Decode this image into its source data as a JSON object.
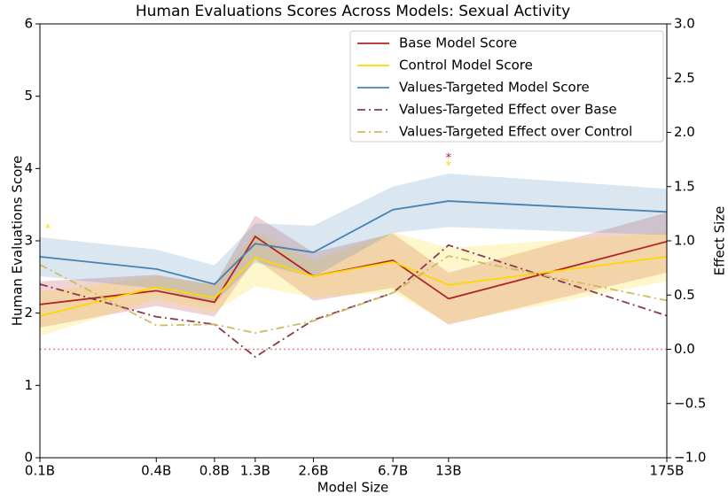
{
  "chart_data": {
    "type": "line",
    "title": "Human Evaluations Scores Across Models: Sexual Activity",
    "x_label": "Model Size",
    "y_label": "Human Evaluations Score",
    "y2_label": "Effect Size",
    "x_scale": "log",
    "x": [
      0.1,
      0.4,
      0.8,
      1.3,
      2.6,
      6.7,
      13,
      175
    ],
    "xlim": [
      0.1,
      175
    ],
    "xticks": [
      {
        "value": 0.1,
        "label": "0.1B"
      },
      {
        "value": 0.4,
        "label": "0.4B"
      },
      {
        "value": 0.8,
        "label": "0.8B"
      },
      {
        "value": 1.3,
        "label": "1.3B"
      },
      {
        "value": 2.6,
        "label": "2.6B"
      },
      {
        "value": 6.7,
        "label": "6.7B"
      },
      {
        "value": 13,
        "label": "13B"
      },
      {
        "value": 175,
        "label": "175B"
      }
    ],
    "ylim": [
      0,
      6
    ],
    "yticks": [
      0,
      1,
      2,
      3,
      4,
      5,
      6
    ],
    "y2lim": [
      -1,
      3
    ],
    "y2ticks": [
      {
        "value": -1,
        "label": "−1.0"
      },
      {
        "value": -0.5,
        "label": "−0.5"
      },
      {
        "value": 0,
        "label": "0.0"
      },
      {
        "value": 0.5,
        "label": "0.5"
      },
      {
        "value": 1,
        "label": "1.0"
      },
      {
        "value": 1.5,
        "label": "1.5"
      },
      {
        "value": 2,
        "label": "2.0"
      },
      {
        "value": 2.5,
        "label": "2.5"
      },
      {
        "value": 3,
        "label": "3.0"
      }
    ],
    "legend": "upper right",
    "reference_y2": 0,
    "series": [
      {
        "name": "Base Model Score",
        "color": "#b22222",
        "style": "solid",
        "values": [
          2.12,
          2.31,
          2.15,
          3.06,
          2.51,
          2.73,
          2.2,
          2.99
        ],
        "band_upper": [
          2.44,
          2.53,
          2.39,
          3.35,
          2.84,
          3.1,
          2.56,
          3.39
        ],
        "band_lower": [
          1.8,
          2.1,
          1.95,
          2.75,
          2.17,
          2.35,
          1.84,
          2.56
        ]
      },
      {
        "name": "Control Model Score",
        "color": "#ffd700",
        "style": "solid",
        "values": [
          1.96,
          2.36,
          2.21,
          2.77,
          2.51,
          2.71,
          2.39,
          2.78
        ],
        "band_upper": [
          2.29,
          2.51,
          2.4,
          3.12,
          2.73,
          3.12,
          2.9,
          3.12
        ],
        "band_lower": [
          1.68,
          2.19,
          2.02,
          2.37,
          2.22,
          2.29,
          1.86,
          2.44
        ]
      },
      {
        "name": "Values-Targeted Model Score",
        "color": "#4682b4",
        "style": "solid",
        "values": [
          2.78,
          2.61,
          2.4,
          2.96,
          2.84,
          3.43,
          3.55,
          3.4
        ],
        "band_upper": [
          3.05,
          2.88,
          2.66,
          3.24,
          3.21,
          3.75,
          3.93,
          3.72
        ],
        "band_lower": [
          2.51,
          2.34,
          2.14,
          2.7,
          2.5,
          3.11,
          3.19,
          3.08
        ]
      },
      {
        "name": "Values-Targeted Effect over Base",
        "color": "#8b3a4a",
        "style": "dashdot",
        "axis": "y2",
        "values": [
          0.6,
          0.3,
          0.23,
          -0.07,
          0.27,
          0.52,
          0.96,
          0.31
        ]
      },
      {
        "name": "Values-Targeted Effect over Control",
        "color": "#cdbb63",
        "style": "dashdot",
        "axis": "y2",
        "values": [
          0.78,
          0.22,
          0.23,
          0.15,
          0.26,
          0.52,
          0.86,
          0.45
        ]
      }
    ],
    "annotations": [
      {
        "text": "*",
        "x": 13,
        "y": 4.19,
        "color": "#b22222"
      },
      {
        "text": "*",
        "x": 13,
        "y": 4.08,
        "color": "#ffd700"
      },
      {
        "text": "*",
        "x": 0.11,
        "y": 3.21,
        "color": "#ffd700"
      }
    ]
  }
}
